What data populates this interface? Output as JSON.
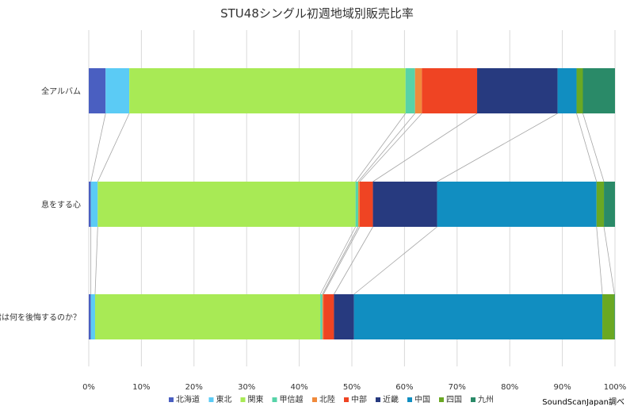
{
  "chart_data": {
    "type": "bar",
    "orientation": "horizontal",
    "stacked": "percent",
    "title": "STU48シングル初週地域別販売比率",
    "categories": [
      "全アルバム",
      "息をする心",
      "君は何を後悔するのか？"
    ],
    "series": [
      {
        "name": "北海道",
        "color": "#4a5fc1",
        "values": [
          3.2,
          0.4,
          0.4
        ]
      },
      {
        "name": "東北",
        "color": "#5bcbf5",
        "values": [
          4.5,
          1.3,
          0.8
        ]
      },
      {
        "name": "関東",
        "color": "#a8ea55",
        "values": [
          52.5,
          49.0,
          42.8
        ]
      },
      {
        "name": "甲信越",
        "color": "#57d3a8",
        "values": [
          1.8,
          0.5,
          0.4
        ]
      },
      {
        "name": "北陸",
        "color": "#f08a3c",
        "values": [
          1.3,
          0.3,
          0.2
        ]
      },
      {
        "name": "中部",
        "color": "#ef4423",
        "values": [
          10.5,
          2.5,
          2.0
        ]
      },
      {
        "name": "近畿",
        "color": "#273a7f",
        "values": [
          15.3,
          12.2,
          3.8
        ]
      },
      {
        "name": "中国",
        "color": "#118ec1",
        "values": [
          3.6,
          30.3,
          47.2
        ]
      },
      {
        "name": "四国",
        "color": "#6aa823",
        "values": [
          1.2,
          1.4,
          2.3
        ]
      },
      {
        "name": "九州",
        "color": "#2a8a68",
        "values": [
          6.1,
          2.1,
          0.1
        ]
      }
    ],
    "xlim": [
      0,
      100
    ],
    "xticks": [
      "0%",
      "10%",
      "20%",
      "30%",
      "40%",
      "50%",
      "60%",
      "70%",
      "80%",
      "90%",
      "100%"
    ],
    "grid": true,
    "legend_position": "bottom",
    "series_connector_lines": true
  },
  "source_note": "SoundScanJapan調べ"
}
